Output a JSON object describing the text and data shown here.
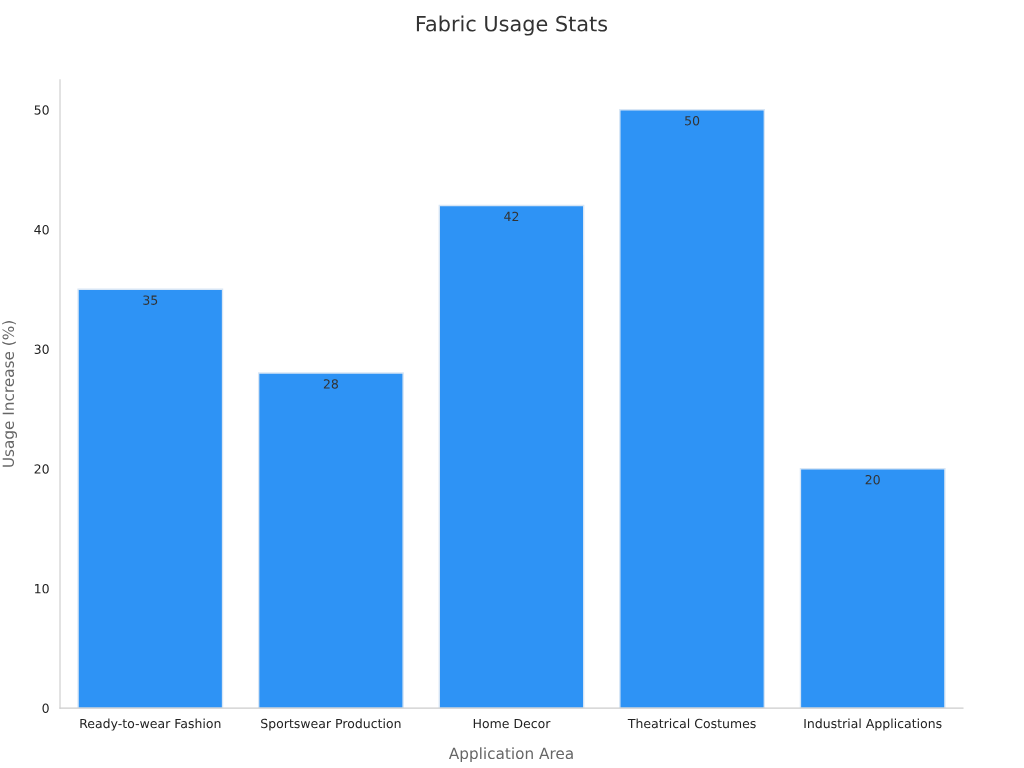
{
  "chart_data": {
    "type": "bar",
    "title": "Fabric Usage Stats",
    "xlabel": "Application Area",
    "ylabel": "Usage Increase (%)",
    "categories": [
      "Ready-to-wear Fashion",
      "Sportswear Production",
      "Home Decor",
      "Theatrical Costumes",
      "Industrial Applications"
    ],
    "values": [
      35,
      28,
      42,
      50,
      20
    ],
    "color": "#2e93f5",
    "ylim": [
      0,
      52.5
    ],
    "yticks": [
      0,
      10,
      20,
      30,
      40,
      50
    ],
    "grid": false,
    "data_labels": true
  }
}
